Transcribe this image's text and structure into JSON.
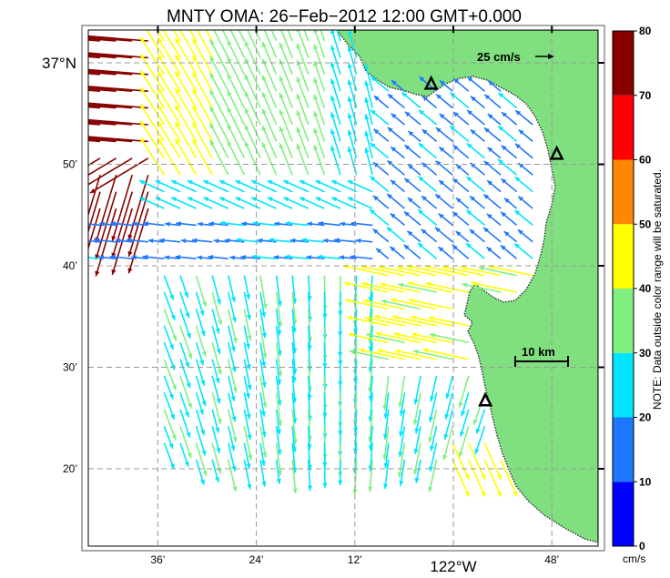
{
  "title": "MNTY OMA: 26−Feb−2012 12:00 GMT+0.000",
  "map": {
    "lat_labels": [
      {
        "text": "37°N",
        "lat": 37.0
      },
      {
        "text": "50’",
        "lat": 36.8333
      },
      {
        "text": "40’",
        "lat": 36.6667
      },
      {
        "text": "30’",
        "lat": 36.5
      },
      {
        "text": "20’",
        "lat": 36.3333
      }
    ],
    "lon_labels": [
      {
        "text": "36’",
        "lon": -122.6
      },
      {
        "text": "24’",
        "lon": -122.4
      },
      {
        "text": "12’",
        "lon": -122.2
      },
      {
        "text": "122°W",
        "lon": -122.0
      },
      {
        "text": "48’",
        "lon": -121.8
      }
    ],
    "land_color": "#80e080",
    "grid": "dashed"
  },
  "scale_vector": {
    "label": "25 cm/s",
    "value_cm_s": 25
  },
  "scale_bar": {
    "label": "10 km",
    "value_km": 10
  },
  "stations": [
    {
      "name": "station-north",
      "lat": 36.965,
      "lon": -122.045
    },
    {
      "name": "station-east",
      "lat": 36.85,
      "lon": -121.79
    },
    {
      "name": "station-south",
      "lat": 36.445,
      "lon": -121.935
    }
  ],
  "colorbar": {
    "unit": "cm/s",
    "ticks": [
      "0",
      "10",
      "20",
      "30",
      "40",
      "50",
      "60",
      "70",
      "80"
    ],
    "colors": [
      "#0000ff",
      "#1e78ff",
      "#00e4ff",
      "#80f080",
      "#ffff00",
      "#ff8800",
      "#ff0000",
      "#880000"
    ],
    "note": "NOTE: Data outside color range will be saturated."
  }
}
